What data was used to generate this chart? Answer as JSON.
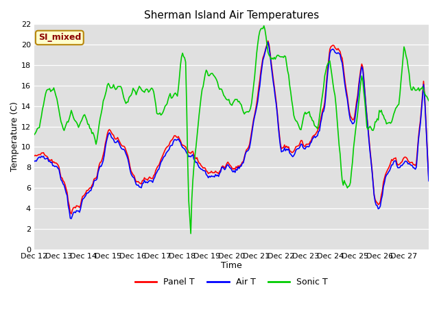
{
  "title": "Sherman Island Air Temperatures",
  "xlabel": "Time",
  "ylabel": "Temperature (C)",
  "ylim": [
    0,
    22
  ],
  "x_tick_labels": [
    "Dec 12",
    "Dec 13",
    "Dec 14",
    "Dec 15",
    "Dec 16",
    "Dec 17",
    "Dec 18",
    "Dec 19",
    "Dec 20",
    "Dec 21",
    "Dec 22",
    "Dec 23",
    "Dec 24",
    "Dec 25",
    "Dec 26",
    "Dec 27"
  ],
  "bg_color": "#e0e0e0",
  "fig_color": "#ffffff",
  "legend_label": "SI_mixed",
  "legend_text_color": "#8b0000",
  "legend_bg": "#ffffcc",
  "series": [
    "Panel T",
    "Air T",
    "Sonic T"
  ],
  "colors": [
    "red",
    "blue",
    "#00cc00"
  ],
  "linewidth": 1.2,
  "title_fontsize": 11,
  "axis_fontsize": 9,
  "tick_fontsize": 8
}
